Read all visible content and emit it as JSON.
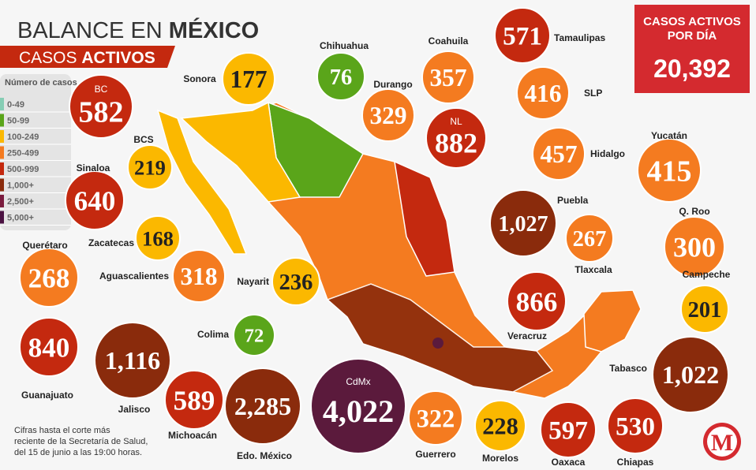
{
  "header": {
    "title_regular": "BALANCE EN ",
    "title_bold": "MÉXICO",
    "subtitle_regular": "CASOS ",
    "subtitle_bold": "ACTIVOS"
  },
  "legend": {
    "title": "Número de casos",
    "items": [
      {
        "label": "0-49",
        "color": "#86cdb4"
      },
      {
        "label": "50-99",
        "color": "#5aa51a"
      },
      {
        "label": "100-249",
        "color": "#fbb800"
      },
      {
        "label": "250-499",
        "color": "#f47b20"
      },
      {
        "label": "500-999",
        "color": "#c4290f"
      },
      {
        "label": "1,000+",
        "color": "#8a2b0c"
      },
      {
        "label": "2,500+",
        "color": "#7b1c3e"
      },
      {
        "label": "5,000+",
        "color": "#4b1242"
      }
    ]
  },
  "daily": {
    "label_line1": "CASOS ACTIVOS",
    "label_line2": "POR DÍA",
    "value": "20,392"
  },
  "states": [
    {
      "name": "BC",
      "value": "582",
      "color": "#c4290f"
    },
    {
      "name": "Sonora",
      "value": "177",
      "color": "#fbb800"
    },
    {
      "name": "Chihuahua",
      "value": "76",
      "color": "#5aa51a"
    },
    {
      "name": "Coahuila",
      "value": "357",
      "color": "#f47b20"
    },
    {
      "name": "Tamaulipas",
      "value": "571",
      "color": "#c4290f"
    },
    {
      "name": "Durango",
      "value": "329",
      "color": "#f47b20"
    },
    {
      "name": "NL",
      "value": "882",
      "color": "#c4290f"
    },
    {
      "name": "SLP",
      "value": "416",
      "color": "#f47b20"
    },
    {
      "name": "Hidalgo",
      "value": "457",
      "color": "#f47b20"
    },
    {
      "name": "Yucatán",
      "value": "415",
      "color": "#f47b20"
    },
    {
      "name": "BCS",
      "value": "219",
      "color": "#fbb800"
    },
    {
      "name": "Sinaloa",
      "value": "640",
      "color": "#c4290f"
    },
    {
      "name": "Puebla",
      "value": "1,027",
      "color": "#8a2b0c"
    },
    {
      "name": "Tlaxcala",
      "value": "267",
      "color": "#f47b20"
    },
    {
      "name": "Q. Roo",
      "value": "300",
      "color": "#f47b20"
    },
    {
      "name": "Zacatecas",
      "value": "168",
      "color": "#fbb800"
    },
    {
      "name": "Querétaro",
      "value": "268",
      "color": "#f47b20"
    },
    {
      "name": "Aguascalientes",
      "value": "318",
      "color": "#f47b20"
    },
    {
      "name": "Nayarit",
      "value": "236",
      "color": "#fbb800"
    },
    {
      "name": "Veracruz",
      "value": "866",
      "color": "#c4290f"
    },
    {
      "name": "Campeche",
      "value": "201",
      "color": "#fbb800"
    },
    {
      "name": "Colima",
      "value": "72",
      "color": "#5aa51a"
    },
    {
      "name": "Guanajuato",
      "value": "840",
      "color": "#c4290f"
    },
    {
      "name": "Jalisco",
      "value": "1,116",
      "color": "#8a2b0c"
    },
    {
      "name": "Tabasco",
      "value": "1,022",
      "color": "#8a2b0c"
    },
    {
      "name": "Michoacán",
      "value": "589",
      "color": "#c4290f"
    },
    {
      "name": "Edo. México",
      "value": "2,285",
      "color": "#8a2b0c"
    },
    {
      "name": "CdMx",
      "value": "4,022",
      "color": "#5b1a3c"
    },
    {
      "name": "Guerrero",
      "value": "322",
      "color": "#f47b20"
    },
    {
      "name": "Morelos",
      "value": "228",
      "color": "#fbb800"
    },
    {
      "name": "Oaxaca",
      "value": "597",
      "color": "#c4290f"
    },
    {
      "name": "Chiapas",
      "value": "530",
      "color": "#c4290f"
    }
  ],
  "footnote": [
    "Cifras hasta el corte más",
    "reciente de la Secretaría de Salud,",
    "del 15 de junio a las 19:00 horas."
  ],
  "logo": "M"
}
